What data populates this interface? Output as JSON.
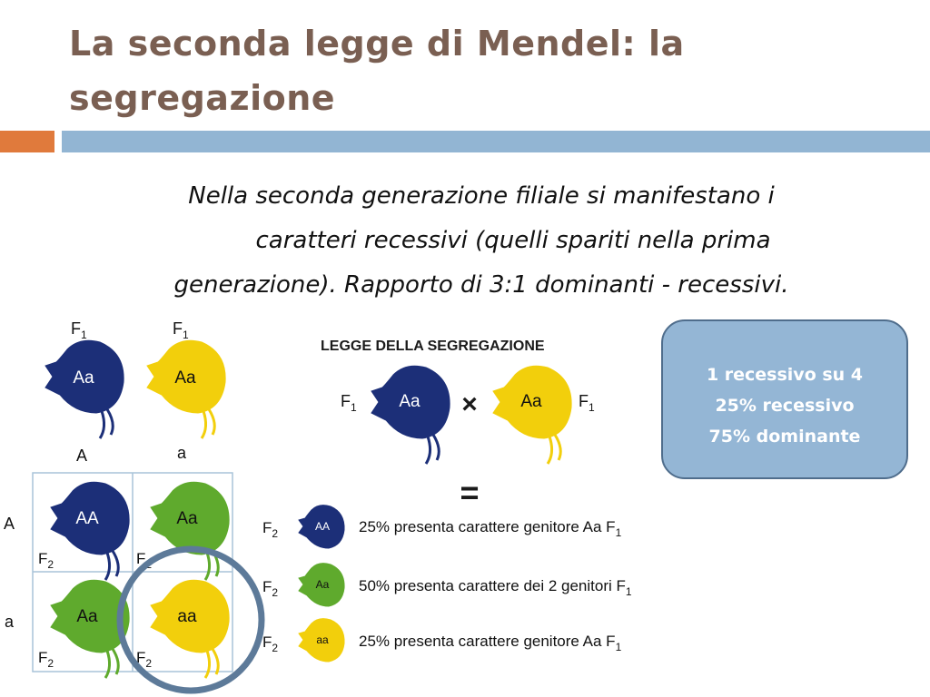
{
  "slide": {
    "title": "La seconda legge di Mendel: la segregazione",
    "body": {
      "line1": "Nella seconda generazione filiale si manifestano i",
      "line2": "caratteri recessivi (quelli spariti nella prima",
      "line3": "generazione). Rapporto di 3:1 dominanti - recessivi."
    },
    "colors": {
      "title": "#7a5f52",
      "accent_orange": "#e07a3c",
      "accent_blue": "#92b5d3",
      "fish_navy": "#1c2f78",
      "fish_yellow": "#f2cf0c",
      "fish_green": "#5faa2d",
      "circle": "#5d7a99"
    }
  },
  "left_diagram": {
    "parents": [
      {
        "gen": "F",
        "sub": "1",
        "genotype": "Aa",
        "color": "navy"
      },
      {
        "gen": "F",
        "sub": "1",
        "genotype": "Aa",
        "color": "yellow"
      }
    ],
    "allele_cols": [
      "A",
      "a"
    ],
    "allele_rows": [
      "A",
      "a"
    ],
    "cells": [
      {
        "genotype": "AA",
        "gen": "F",
        "sub": "2"
      },
      {
        "genotype": "Aa",
        "gen": "F",
        "sub": "2"
      },
      {
        "genotype": "Aa",
        "gen": "F",
        "sub": "2"
      },
      {
        "genotype": "aa",
        "gen": "F",
        "sub": "2"
      }
    ]
  },
  "right_diagram": {
    "heading": "LEGGE DELLA SEGREGAZIONE",
    "cross_left": {
      "gen": "F",
      "sub": "1",
      "genotype": "Aa"
    },
    "cross_sign": "×",
    "cross_right": {
      "gen": "F",
      "sub": "1",
      "genotype": "Aa"
    },
    "equals": "=",
    "results": [
      {
        "gen": "F",
        "sub": "2",
        "genotype": "AA",
        "text": "25% presenta carattere genitore Aa F",
        "sub_end": "1"
      },
      {
        "gen": "F",
        "sub": "2",
        "genotype": "Aa",
        "text": "50% presenta carattere dei 2 genitori F",
        "sub_end": "1"
      },
      {
        "gen": "F",
        "sub": "2",
        "genotype": "aa",
        "text": "25% presenta carattere genitore Aa F",
        "sub_end": "1"
      }
    ]
  },
  "callout": {
    "line1": "1 recessivo su 4",
    "line2": "25% recessivo",
    "line3": "75% dominante"
  }
}
